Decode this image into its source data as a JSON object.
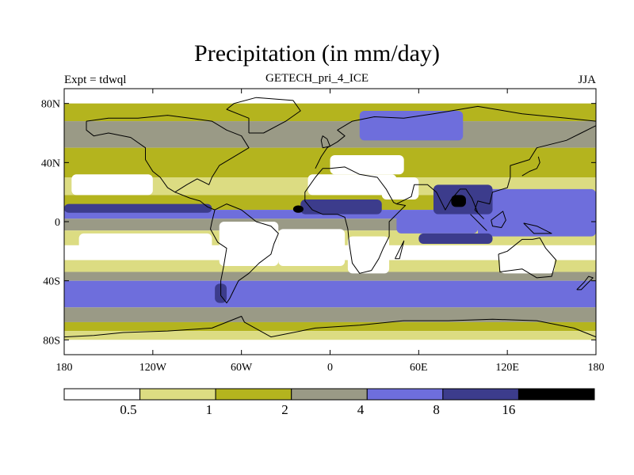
{
  "header": {
    "title": "Precipitation (in mm/day)",
    "subtitle": "GETECH_pri_4_ICE",
    "left_label": "Expt = tdwql",
    "right_label": "JJA"
  },
  "colors": {
    "c0": "#ffffff",
    "c1": "#dcdc82",
    "c2": "#b4b41e",
    "c3": "#9a9a86",
    "c4": "#6e6edc",
    "c5": "#3c3c8c",
    "c6": "#000000",
    "coast": "#000000"
  },
  "chart_data": {
    "type": "heatmap",
    "title": "Precipitation (in mm/day)",
    "subtitle": "GETECH_pri_4_ICE",
    "experiment": "Expt = tdwql",
    "season": "JJA",
    "x_ticks": [
      {
        "value": -180,
        "label": "180"
      },
      {
        "value": -120,
        "label": "120W"
      },
      {
        "value": -60,
        "label": "60W"
      },
      {
        "value": 0,
        "label": "0"
      },
      {
        "value": 60,
        "label": "60E"
      },
      {
        "value": 120,
        "label": "120E"
      },
      {
        "value": 180,
        "label": "180"
      }
    ],
    "y_ticks": [
      {
        "value": 80,
        "label": "80N"
      },
      {
        "value": 40,
        "label": "40N"
      },
      {
        "value": 0,
        "label": "0"
      },
      {
        "value": -40,
        "label": "40S"
      },
      {
        "value": -80,
        "label": "80S"
      }
    ],
    "xlim": [
      -180,
      180
    ],
    "ylim": [
      -90,
      90
    ],
    "colorbar": {
      "levels": [
        0.5,
        1,
        2,
        4,
        8,
        16
      ],
      "labels": [
        "0.5",
        "1",
        "2",
        "4",
        "8",
        "16"
      ],
      "colors": [
        "#ffffff",
        "#dcdc82",
        "#b4b41e",
        "#9a9a86",
        "#6e6edc",
        "#3c3c8c",
        "#000000"
      ]
    },
    "lat_bands": [
      {
        "lat": [
          80,
          90
        ],
        "class": 0
      },
      {
        "lat": [
          68,
          80
        ],
        "class": 2
      },
      {
        "lat": [
          50,
          68
        ],
        "class": 3
      },
      {
        "lat": [
          30,
          50
        ],
        "class": 2
      },
      {
        "lat": [
          18,
          30
        ],
        "class": 1
      },
      {
        "lat": [
          8,
          18
        ],
        "class": 2
      },
      {
        "lat": [
          2,
          8
        ],
        "class": 4
      },
      {
        "lat": [
          -6,
          2
        ],
        "class": 3
      },
      {
        "lat": [
          -16,
          -6
        ],
        "class": 1
      },
      {
        "lat": [
          -26,
          -16
        ],
        "class": 0
      },
      {
        "lat": [
          -34,
          -26
        ],
        "class": 1
      },
      {
        "lat": [
          -40,
          -34
        ],
        "class": 3
      },
      {
        "lat": [
          -58,
          -40
        ],
        "class": 4
      },
      {
        "lat": [
          -68,
          -58
        ],
        "class": 3
      },
      {
        "lat": [
          -74,
          -68
        ],
        "class": 2
      },
      {
        "lat": [
          -80,
          -74
        ],
        "class": 1
      },
      {
        "lat": [
          -90,
          -80
        ],
        "class": 0
      }
    ],
    "regions": [
      {
        "name": "north-pacific-dry",
        "class": 0,
        "lon": [
          -175,
          -120
        ],
        "lat": [
          18,
          32
        ]
      },
      {
        "name": "east-pacific-itcz",
        "class": 5,
        "lon": [
          -180,
          -80
        ],
        "lat": [
          6,
          12
        ]
      },
      {
        "name": "south-pacific-dry",
        "class": 0,
        "lon": [
          -170,
          -80
        ],
        "lat": [
          -22,
          -8
        ]
      },
      {
        "name": "west-pacific-warm-pool",
        "class": 4,
        "lon": [
          100,
          180
        ],
        "lat": [
          -10,
          22
        ]
      },
      {
        "name": "indian-monsoon",
        "class": 5,
        "lon": [
          70,
          110
        ],
        "lat": [
          5,
          25
        ]
      },
      {
        "name": "monsoon-core",
        "class": 6,
        "lon": [
          82,
          92
        ],
        "lat": [
          10,
          18
        ]
      },
      {
        "name": "equatorial-indian-ocean",
        "class": 4,
        "lon": [
          45,
          100
        ],
        "lat": [
          -8,
          5
        ]
      },
      {
        "name": "south-indian-ocean",
        "class": 5,
        "lon": [
          60,
          110
        ],
        "lat": [
          -15,
          -8
        ]
      },
      {
        "name": "west-africa-monsoon",
        "class": 5,
        "lon": [
          -20,
          35
        ],
        "lat": [
          5,
          15
        ]
      },
      {
        "name": "africa-core",
        "class": 6,
        "lon": [
          -25,
          -18
        ],
        "lat": [
          6,
          11
        ]
      },
      {
        "name": "sahara-dry",
        "class": 0,
        "lon": [
          -15,
          45
        ],
        "lat": [
          18,
          32
        ]
      },
      {
        "name": "arabia-dry",
        "class": 0,
        "lon": [
          35,
          60
        ],
        "lat": [
          15,
          30
        ]
      },
      {
        "name": "mediterranean-dry",
        "class": 0,
        "lon": [
          0,
          50
        ],
        "lat": [
          32,
          45
        ]
      },
      {
        "name": "south-america-dry",
        "class": 0,
        "lon": [
          -75,
          -35
        ],
        "lat": [
          -30,
          0
        ]
      },
      {
        "name": "south-atlantic-dry",
        "class": 0,
        "lon": [
          -35,
          10
        ],
        "lat": [
          -30,
          -5
        ]
      },
      {
        "name": "southern-africa-dry",
        "class": 0,
        "lon": [
          12,
          40
        ],
        "lat": [
          -35,
          -10
        ]
      },
      {
        "name": "australia-dry",
        "class": 0,
        "lon": [
          115,
          152
        ],
        "lat": [
          -35,
          -18
        ]
      },
      {
        "name": "chile-storm",
        "class": 5,
        "lon": [
          -78,
          -70
        ],
        "lat": [
          -55,
          -42
        ]
      },
      {
        "name": "arctic-siberia-wet",
        "class": 4,
        "lon": [
          20,
          90
        ],
        "lat": [
          55,
          75
        ]
      },
      {
        "name": "antarctic-dry",
        "class": 0,
        "lon": [
          -80,
          160
        ],
        "lat": [
          -90,
          -82
        ]
      }
    ],
    "coastlines": [
      {
        "name": "north-america",
        "points": [
          [
            -165,
            68
          ],
          [
            -150,
            70
          ],
          [
            -130,
            70
          ],
          [
            -110,
            72
          ],
          [
            -95,
            70
          ],
          [
            -80,
            68
          ],
          [
            -70,
            62
          ],
          [
            -60,
            58
          ],
          [
            -55,
            50
          ],
          [
            -65,
            44
          ],
          [
            -75,
            38
          ],
          [
            -80,
            30
          ],
          [
            -82,
            25
          ],
          [
            -90,
            29
          ],
          [
            -97,
            25
          ],
          [
            -105,
            20
          ],
          [
            -110,
            23
          ],
          [
            -115,
            30
          ],
          [
            -120,
            34
          ],
          [
            -125,
            42
          ],
          [
            -125,
            50
          ],
          [
            -135,
            57
          ],
          [
            -150,
            60
          ],
          [
            -160,
            58
          ],
          [
            -165,
            62
          ],
          [
            -165,
            68
          ]
        ]
      },
      {
        "name": "central-america",
        "points": [
          [
            -105,
            20
          ],
          [
            -95,
            16
          ],
          [
            -88,
            14
          ],
          [
            -83,
            10
          ],
          [
            -78,
            8
          ]
        ]
      },
      {
        "name": "south-america",
        "points": [
          [
            -78,
            8
          ],
          [
            -70,
            12
          ],
          [
            -60,
            8
          ],
          [
            -50,
            0
          ],
          [
            -40,
            -3
          ],
          [
            -35,
            -8
          ],
          [
            -38,
            -15
          ],
          [
            -40,
            -22
          ],
          [
            -48,
            -28
          ],
          [
            -55,
            -35
          ],
          [
            -62,
            -40
          ],
          [
            -65,
            -46
          ],
          [
            -68,
            -52
          ],
          [
            -70,
            -55
          ],
          [
            -74,
            -50
          ],
          [
            -74,
            -40
          ],
          [
            -72,
            -30
          ],
          [
            -70,
            -18
          ],
          [
            -76,
            -14
          ],
          [
            -81,
            -5
          ],
          [
            -80,
            0
          ],
          [
            -78,
            8
          ]
        ]
      },
      {
        "name": "greenland",
        "points": [
          [
            -55,
            60
          ],
          [
            -45,
            60
          ],
          [
            -30,
            68
          ],
          [
            -20,
            75
          ],
          [
            -25,
            82
          ],
          [
            -50,
            84
          ],
          [
            -65,
            80
          ],
          [
            -70,
            76
          ],
          [
            -55,
            70
          ],
          [
            -55,
            60
          ]
        ]
      },
      {
        "name": "eurasia-africa",
        "points": [
          [
            -10,
            36
          ],
          [
            -6,
            44
          ],
          [
            -2,
            50
          ],
          [
            5,
            54
          ],
          [
            10,
            58
          ],
          [
            5,
            62
          ],
          [
            15,
            68
          ],
          [
            30,
            71
          ],
          [
            50,
            70
          ],
          [
            70,
            73
          ],
          [
            100,
            78
          ],
          [
            130,
            73
          ],
          [
            160,
            70
          ],
          [
            180,
            68
          ],
          [
            180,
            65
          ],
          [
            170,
            60
          ],
          [
            160,
            55
          ],
          [
            140,
            50
          ],
          [
            135,
            42
          ],
          [
            122,
            38
          ],
          [
            122,
            30
          ],
          [
            120,
            23
          ],
          [
            110,
            20
          ],
          [
            108,
            12
          ],
          [
            100,
            14
          ],
          [
            98,
            8
          ],
          [
            104,
            2
          ],
          [
            100,
            6
          ],
          [
            96,
            16
          ],
          [
            92,
            22
          ],
          [
            88,
            22
          ],
          [
            82,
            15
          ],
          [
            78,
            8
          ],
          [
            72,
            20
          ],
          [
            66,
            25
          ],
          [
            57,
            25
          ],
          [
            55,
            17
          ],
          [
            45,
            12
          ],
          [
            43,
            13
          ],
          [
            38,
            22
          ],
          [
            32,
            30
          ],
          [
            20,
            32
          ],
          [
            10,
            37
          ],
          [
            0,
            36
          ],
          [
            -5,
            36
          ],
          [
            -10,
            30
          ],
          [
            -17,
            20
          ],
          [
            -17,
            14
          ],
          [
            -12,
            8
          ],
          [
            -5,
            5
          ],
          [
            5,
            5
          ],
          [
            10,
            3
          ],
          [
            12,
            -5
          ],
          [
            13,
            -15
          ],
          [
            15,
            -28
          ],
          [
            20,
            -35
          ],
          [
            28,
            -33
          ],
          [
            33,
            -25
          ],
          [
            36,
            -18
          ],
          [
            40,
            -10
          ],
          [
            40,
            0
          ],
          [
            45,
            5
          ],
          [
            51,
            11
          ],
          [
            45,
            12
          ]
        ]
      },
      {
        "name": "australia",
        "points": [
          [
            114,
            -22
          ],
          [
            120,
            -20
          ],
          [
            130,
            -12
          ],
          [
            137,
            -12
          ],
          [
            142,
            -11
          ],
          [
            146,
            -18
          ],
          [
            153,
            -26
          ],
          [
            150,
            -37
          ],
          [
            140,
            -38
          ],
          [
            135,
            -35
          ],
          [
            130,
            -32
          ],
          [
            115,
            -34
          ],
          [
            114,
            -22
          ]
        ]
      },
      {
        "name": "antarctica",
        "points": [
          [
            -180,
            -78
          ],
          [
            -160,
            -77
          ],
          [
            -140,
            -75
          ],
          [
            -110,
            -74
          ],
          [
            -80,
            -72
          ],
          [
            -60,
            -64
          ],
          [
            -58,
            -68
          ],
          [
            -40,
            -78
          ],
          [
            -10,
            -72
          ],
          [
            20,
            -70
          ],
          [
            50,
            -67
          ],
          [
            80,
            -67
          ],
          [
            110,
            -66
          ],
          [
            140,
            -67
          ],
          [
            165,
            -72
          ],
          [
            180,
            -78
          ]
        ]
      },
      {
        "name": "british-isles",
        "points": [
          [
            -5,
            50
          ],
          [
            0,
            51
          ],
          [
            -2,
            56
          ],
          [
            -5,
            58
          ],
          [
            -6,
            55
          ],
          [
            -5,
            50
          ]
        ]
      },
      {
        "name": "japan",
        "points": [
          [
            130,
            31
          ],
          [
            135,
            34
          ],
          [
            140,
            36
          ],
          [
            142,
            40
          ],
          [
            141,
            44
          ]
        ]
      },
      {
        "name": "madagascar",
        "points": [
          [
            44,
            -25
          ],
          [
            49,
            -15
          ],
          [
            50,
            -13
          ],
          [
            47,
            -25
          ],
          [
            44,
            -25
          ]
        ]
      },
      {
        "name": "new-zealand",
        "points": [
          [
            167,
            -46
          ],
          [
            172,
            -41
          ],
          [
            175,
            -37
          ],
          [
            178,
            -38
          ],
          [
            174,
            -42
          ],
          [
            170,
            -46
          ],
          [
            167,
            -46
          ]
        ]
      },
      {
        "name": "new-guinea",
        "points": [
          [
            131,
            -1
          ],
          [
            140,
            -3
          ],
          [
            150,
            -8
          ],
          [
            145,
            -8
          ],
          [
            138,
            -8
          ],
          [
            131,
            -1
          ]
        ]
      },
      {
        "name": "borneo",
        "points": [
          [
            109,
            1
          ],
          [
            117,
            7
          ],
          [
            119,
            1
          ],
          [
            116,
            -4
          ],
          [
            110,
            -3
          ],
          [
            109,
            1
          ]
        ]
      },
      {
        "name": "sumatra",
        "points": [
          [
            95,
            5
          ],
          [
            106,
            -6
          ],
          [
            104,
            -4
          ],
          [
            98,
            2
          ],
          [
            95,
            5
          ]
        ]
      }
    ]
  }
}
